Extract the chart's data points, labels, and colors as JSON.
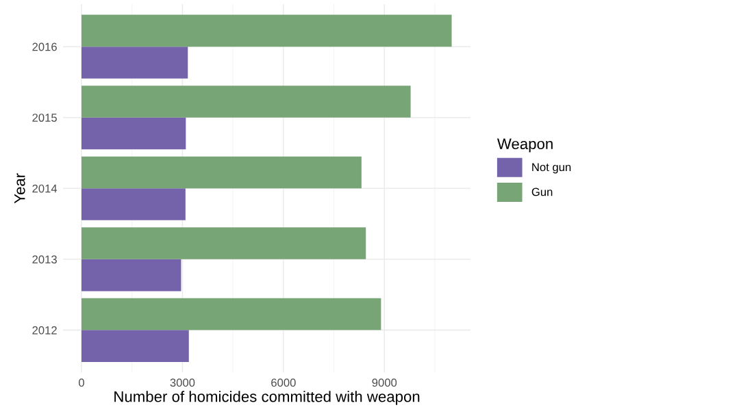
{
  "chart_data": {
    "type": "bar",
    "orientation": "horizontal",
    "xlabel": "Number of homicides committed with weapon",
    "ylabel": "Year",
    "legend_title": "Weapon",
    "categories": [
      "2016",
      "2015",
      "2014",
      "2013",
      "2012"
    ],
    "series": [
      {
        "name": "Not gun",
        "color": "#7463aa",
        "values": [
          3160,
          3100,
          3090,
          2960,
          3190
        ]
      },
      {
        "name": "Gun",
        "color": "#77a575",
        "values": [
          11000,
          9780,
          8320,
          8450,
          8900
        ]
      }
    ],
    "xlim": [
      -550,
      11560
    ],
    "xticks": [
      0,
      3000,
      6000,
      9000
    ],
    "grid": true,
    "legend": "right"
  }
}
